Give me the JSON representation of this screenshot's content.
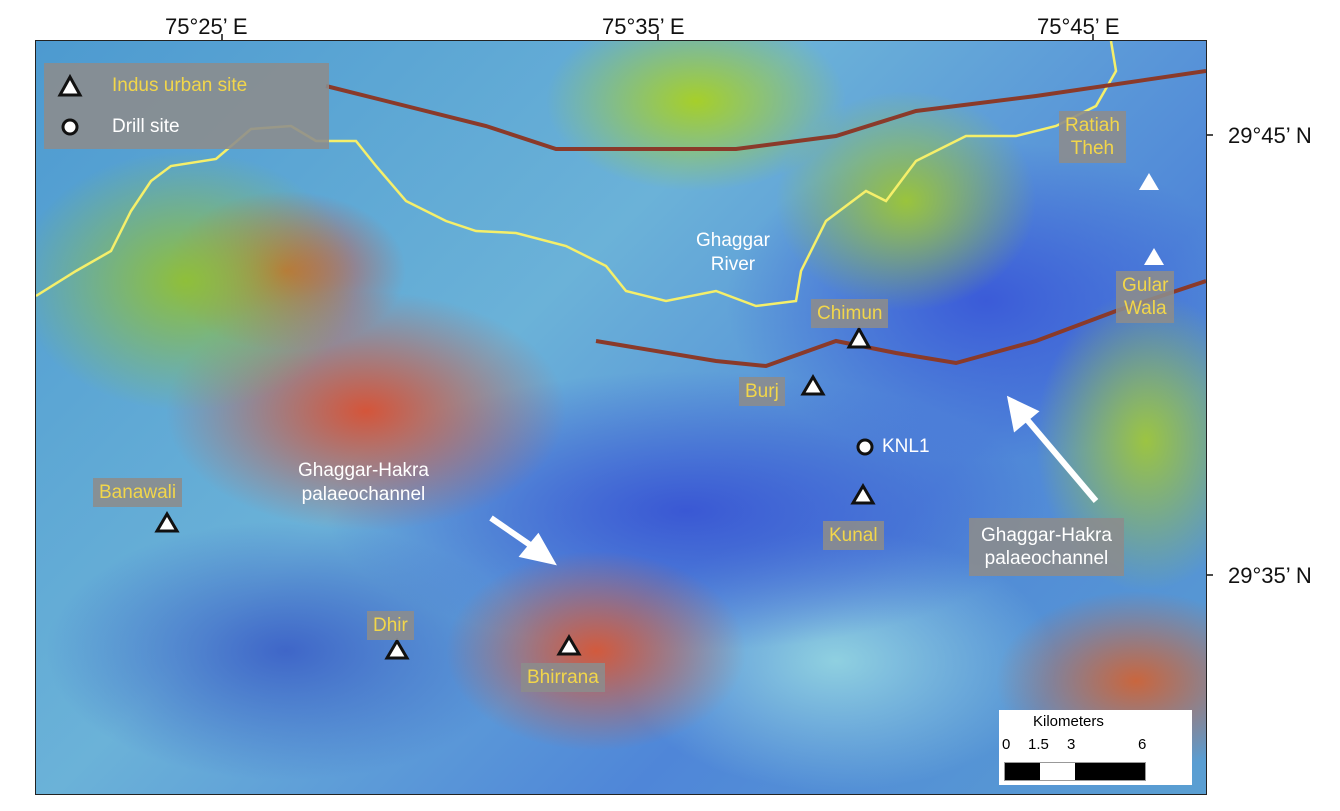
{
  "axes": {
    "longitude": [
      "75°25’ E",
      "75°35’ E",
      "75°45’ E"
    ],
    "latitude": [
      "29°45’ N",
      "29°35’ N"
    ]
  },
  "legend": {
    "urban_site": "Indus urban site",
    "drill_site": "Drill site"
  },
  "sites": {
    "ratiah": "Ratiah\nTheh",
    "gular": "Gular\nWala",
    "chimun": "Chimun",
    "burj": "Burj",
    "kunal": "Kunal",
    "banawali": "Banawali",
    "dhir": "Dhir",
    "bhirrana": "Bhirrana"
  },
  "drill": {
    "knl1": "KNL1"
  },
  "features": {
    "river": "Ghaggar\nRiver",
    "palaeo_left": "Ghaggar-Hakra\npalaeochannel",
    "palaeo_right": "Ghaggar-Hakra\npalaeochannel"
  },
  "scale": {
    "title": "Kilometers",
    "ticks": [
      "0",
      "1.5",
      "3",
      "6"
    ]
  },
  "colors": {
    "site_label": "#f2d64a",
    "river": "#f5ef6a",
    "canal": "#8a3a2a"
  }
}
